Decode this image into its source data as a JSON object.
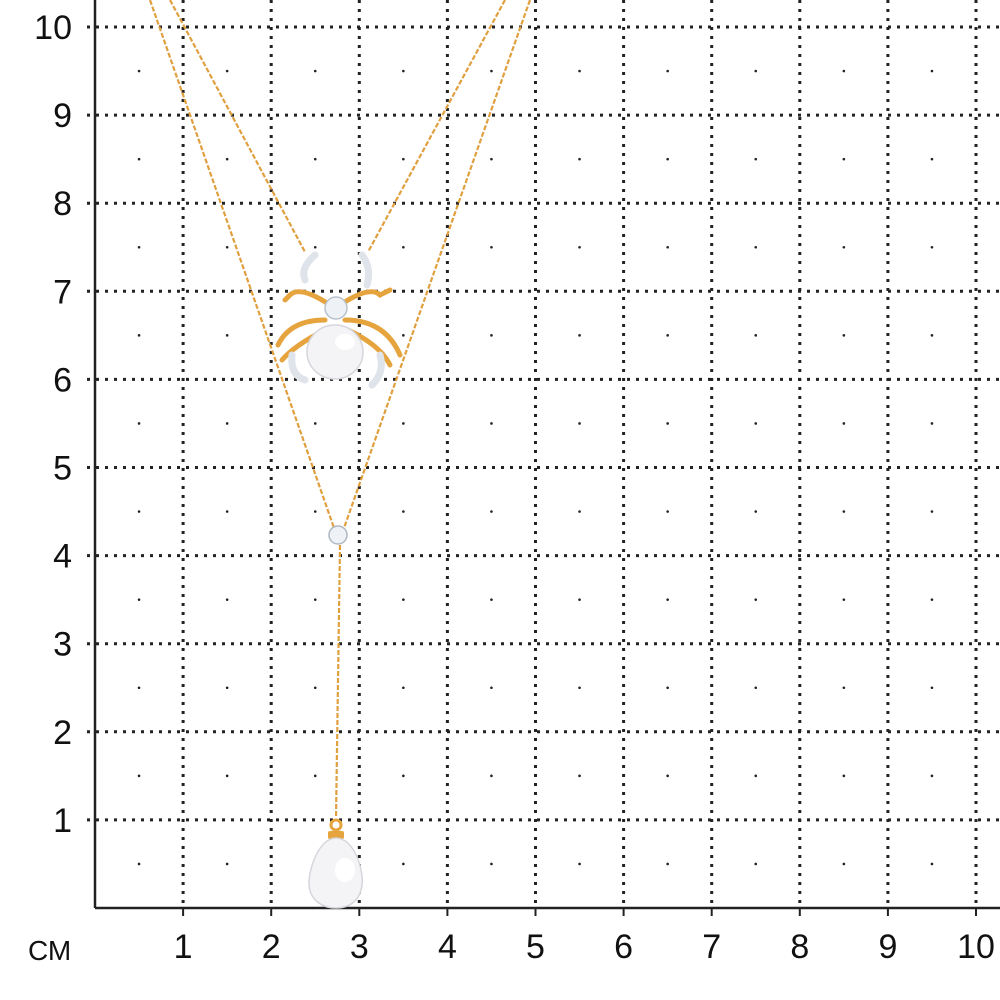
{
  "grid": {
    "unit_label": "СМ",
    "x_ticks": [
      "1",
      "2",
      "3",
      "4",
      "5",
      "6",
      "7",
      "8",
      "9",
      "10"
    ],
    "y_ticks": [
      "1",
      "2",
      "3",
      "4",
      "5",
      "6",
      "7",
      "8",
      "9",
      "10"
    ],
    "line_color": "#222222"
  },
  "product": {
    "metal_color": "#e8a84a",
    "pearl_color": "#f4f4f6",
    "stone_color": "#eef2f6"
  }
}
